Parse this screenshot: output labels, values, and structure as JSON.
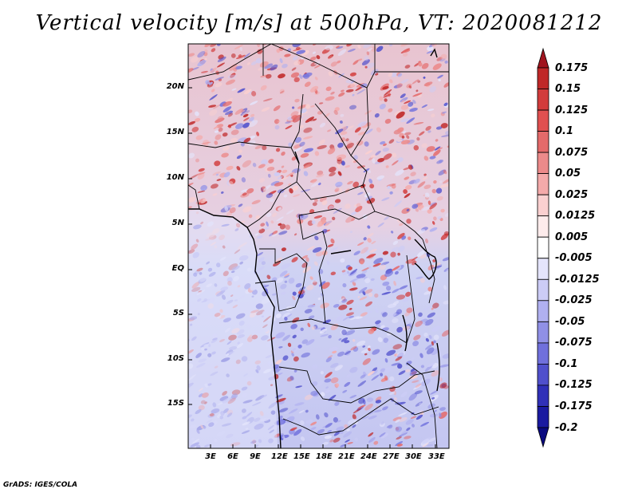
{
  "title": "Vertical velocity [m/s] at 500hPa, VT: 2020081212",
  "credit": "GrADS: IGES/COLA",
  "map": {
    "lat_labels": [
      "20N",
      "15N",
      "10N",
      "5N",
      "EQ",
      "5S",
      "10S",
      "15S"
    ],
    "lon_labels": [
      "3E",
      "6E",
      "9E",
      "12E",
      "15E",
      "18E",
      "21E",
      "24E",
      "27E",
      "30E",
      "33E"
    ]
  },
  "colorbar": {
    "labels": [
      "0.175",
      "0.15",
      "0.125",
      "0.1",
      "0.075",
      "0.05",
      "0.025",
      "0.0125",
      "0.005",
      "-0.005",
      "-0.0125",
      "-0.025",
      "-0.05",
      "-0.075",
      "-0.1",
      "-0.125",
      "-0.175",
      "-0.2"
    ],
    "colors": [
      "#a0141e",
      "#c02828",
      "#d23c3c",
      "#e05050",
      "#e46a6a",
      "#ec8a8a",
      "#f4aaaa",
      "#fad0d0",
      "#fdecec",
      "#ffffff",
      "#e4e4fb",
      "#ccccf6",
      "#b0b0f0",
      "#9090e6",
      "#7070dc",
      "#5050cc",
      "#3030b8",
      "#1a1aa0",
      "#0a0a80"
    ]
  },
  "colors": {
    "border": "#000000",
    "background": "#ffffff"
  }
}
